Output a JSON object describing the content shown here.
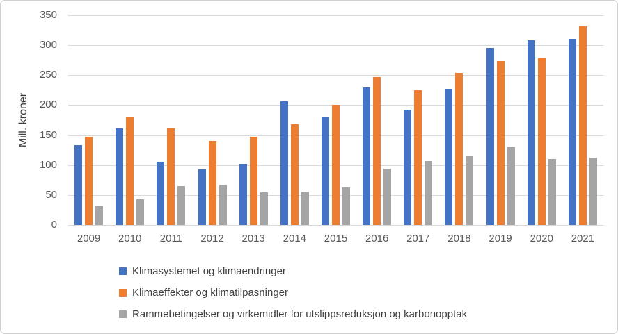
{
  "chart_data": {
    "type": "bar",
    "title": "",
    "xlabel": "",
    "ylabel": "Mill. kroner",
    "ylim": [
      0,
      350
    ],
    "ytick_step": 50,
    "grid": true,
    "legend_position": "bottom-left",
    "categories": [
      "2009",
      "2010",
      "2011",
      "2012",
      "2013",
      "2014",
      "2015",
      "2016",
      "2017",
      "2018",
      "2019",
      "2020",
      "2021"
    ],
    "series": [
      {
        "name": "Klimasystemet og klimaendringer",
        "color": "#4472C4",
        "values": [
          133,
          161,
          106,
          93,
          102,
          206,
          181,
          230,
          192,
          227,
          295,
          308,
          311
        ]
      },
      {
        "name": "Klimaeffekter og klimatilpasninger",
        "color": "#ED7D31",
        "values": [
          147,
          181,
          161,
          140,
          147,
          168,
          201,
          247,
          225,
          254,
          273,
          279,
          331
        ]
      },
      {
        "name": "Rammebetingelser og virkemidler for utslippsreduksjon og karbonopptak",
        "color": "#A5A5A5",
        "values": [
          31,
          43,
          65,
          67,
          55,
          56,
          63,
          94,
          107,
          116,
          130,
          110,
          112
        ]
      }
    ],
    "colors": {
      "gridline": "#D9D9D9",
      "tick_text": "#595959",
      "axis_title_text": "#404040",
      "legend_text": "#404040",
      "figure_border": "#CFCFCF",
      "background": "#FFFFFF"
    }
  }
}
